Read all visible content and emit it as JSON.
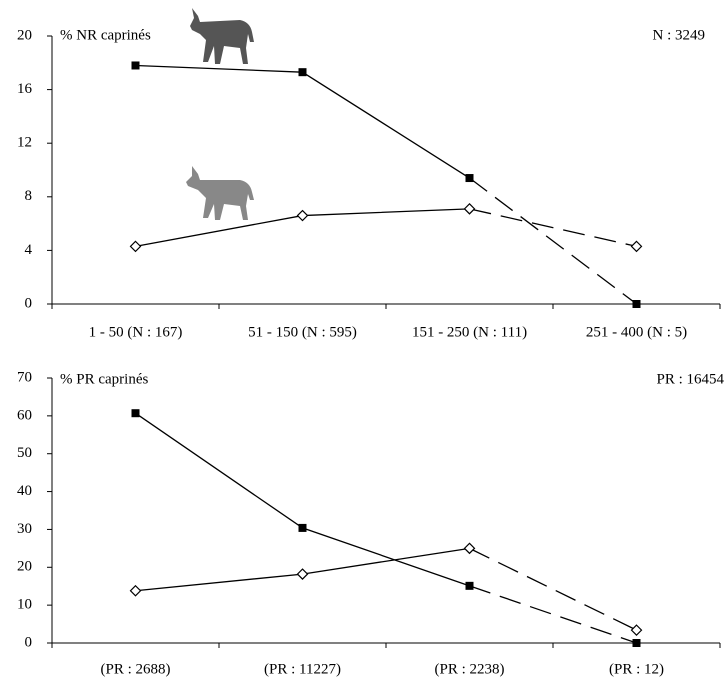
{
  "chart_data": [
    {
      "type": "line",
      "title": "% NR caprinés",
      "annotation": "N : 3249",
      "categories": [
        "1 - 50 (N : 167)",
        "51 - 150 (N : 595)",
        "151 - 250 (N : 111)",
        "251 - 400 (N : 5)"
      ],
      "series": [
        {
          "color": "#000000",
          "marker": "square",
          "values": [
            17.8,
            17.3,
            9.4,
            0
          ]
        },
        {
          "color": "#000000",
          "marker": "diamond",
          "values": [
            4.3,
            6.6,
            7.1,
            4.3
          ]
        }
      ],
      "ylim": [
        0,
        20
      ],
      "yticks": [
        0,
        4,
        8,
        12,
        16,
        20
      ],
      "dashed_last_segment": true
    },
    {
      "type": "line",
      "title": "% PR caprinés",
      "annotation": "PR : 16454",
      "categories": [
        "(PR : 2688)",
        "(PR : 11227)",
        "(PR : 2238)",
        "(PR : 12)"
      ],
      "series": [
        {
          "color": "#000000",
          "marker": "square",
          "values": [
            60.7,
            30.4,
            15.1,
            0
          ]
        },
        {
          "color": "#000000",
          "marker": "diamond",
          "values": [
            13.8,
            18.2,
            25,
            3.4
          ]
        }
      ],
      "ylim": [
        0,
        70
      ],
      "yticks": [
        0,
        10,
        20,
        30,
        40,
        50,
        60,
        70
      ],
      "dashed_last_segment": true
    }
  ]
}
